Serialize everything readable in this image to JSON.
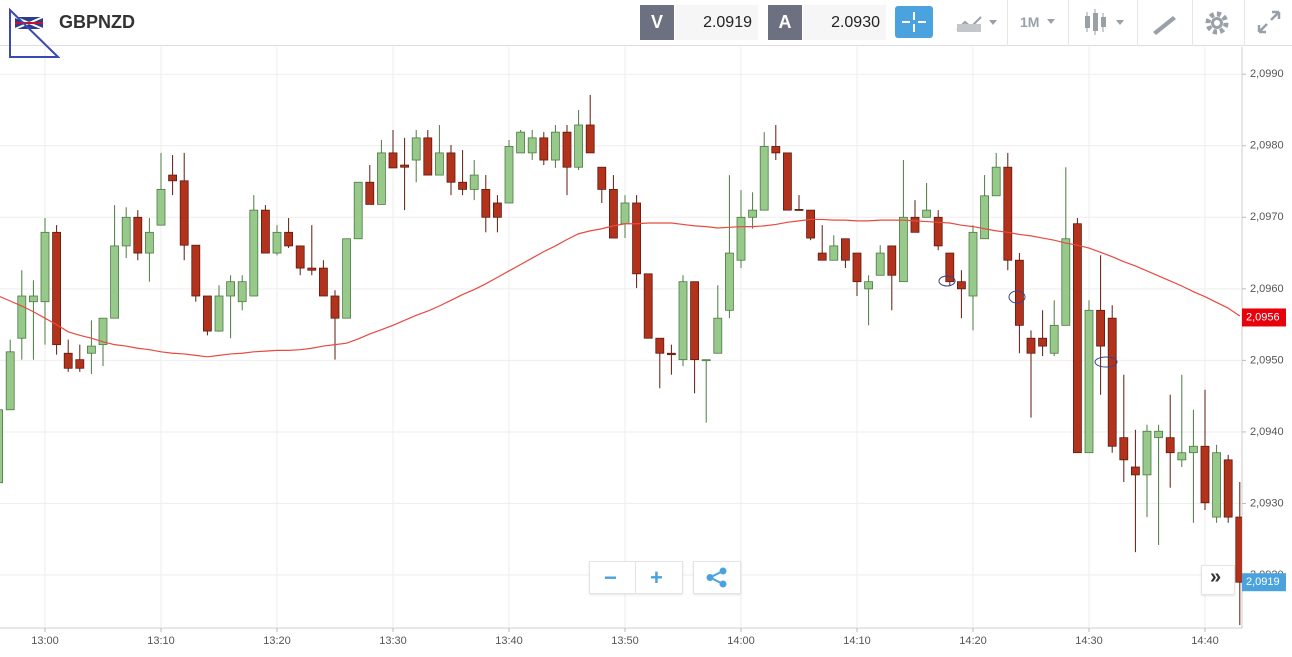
{
  "toolbar": {
    "symbol": "GBPNZD",
    "bid": {
      "label": "V",
      "price": "2.0919"
    },
    "ask": {
      "label": "A",
      "price": "2.0930"
    },
    "timeframe": "1M",
    "zoom_out": "−",
    "zoom_in": "+",
    "scroll": "»"
  },
  "chart_data": {
    "type": "candlestick",
    "x": [
      null,
      null,
      null,
      null,
      "13:00",
      null,
      null,
      null,
      null,
      null,
      null,
      null,
      null,
      null,
      "13:10",
      null,
      null,
      null,
      null,
      null,
      null,
      null,
      null,
      null,
      "13:20",
      null,
      null,
      null,
      null,
      null,
      null,
      null,
      null,
      null,
      "13:30",
      null,
      null,
      null,
      null,
      null,
      null,
      null,
      null,
      null,
      "13:40",
      null,
      null,
      null,
      null,
      null,
      null,
      null,
      null,
      null,
      "13:50",
      null,
      null,
      null,
      null,
      null,
      null,
      null,
      null,
      null,
      "14:00",
      null,
      null,
      null,
      null,
      null,
      null,
      null,
      null,
      null,
      "14:10",
      null,
      null,
      null,
      null,
      null,
      null,
      null,
      null,
      null,
      "14:20",
      null,
      null,
      null,
      null,
      null,
      null,
      null,
      null,
      null,
      "14:30",
      null,
      null,
      null,
      null,
      null,
      null,
      null,
      null,
      null,
      "14:40",
      null,
      null,
      null
    ],
    "open": [
      2.09329,
      2.09431,
      2.09531,
      2.09582,
      2.09582,
      2.09679,
      2.0951,
      2.09501,
      2.0951,
      2.09522,
      2.09559,
      2.0966,
      2.097,
      2.0965,
      2.09689,
      2.09759,
      2.09751,
      2.09661,
      2.0959,
      2.09541,
      2.0959,
      2.09582,
      2.0959,
      2.0971,
      2.0965,
      2.09679,
      2.0966,
      2.09629,
      2.09629,
      2.0959,
      2.09559,
      2.0967,
      2.09749,
      2.09718,
      2.0979,
      2.09773,
      2.0978,
      2.09811,
      2.09759,
      2.0979,
      2.09749,
      2.09739,
      2.09739,
      2.0972,
      2.0972,
      2.0979,
      2.0979,
      2.09811,
      2.0978,
      2.09819,
      2.0977,
      2.09829,
      2.0977,
      2.09739,
      2.09691,
      2.0972,
      2.09621,
      2.09531,
      2.0951,
      2.09501,
      2.0961,
      2.09501,
      2.0951,
      2.0957,
      2.0964,
      2.097,
      2.0971,
      2.09799,
      2.0979,
      2.09711,
      2.0971,
      2.0965,
      2.0964,
      2.0967,
      2.0965,
      2.096,
      2.09619,
      2.0966,
      2.0961,
      2.097,
      2.097,
      2.097,
      2.0965,
      2.0961,
      2.0959,
      2.0967,
      2.0973,
      2.0977,
      2.0964,
      2.09531,
      2.09531,
      2.0951,
      2.09549,
      2.09691,
      2.09371,
      2.0957,
      2.09559,
      2.09392,
      2.09351,
      2.0934,
      2.09392,
      2.09392,
      2.09361,
      2.09371,
      2.0938,
      2.09281,
      2.09361,
      2.09281
    ],
    "high": [
      2.09438,
      2.09529,
      2.09626,
      2.09612,
      2.09699,
      2.09689,
      2.09529,
      2.09522,
      2.09556,
      2.09559,
      2.09717,
      2.09714,
      2.0971,
      2.09699,
      2.0979,
      2.09787,
      2.0979,
      2.09661,
      2.0959,
      2.09605,
      2.09619,
      2.09619,
      2.09731,
      2.09717,
      2.09689,
      2.09699,
      2.0966,
      2.09689,
      2.0964,
      2.09598,
      2.0967,
      2.09749,
      2.09773,
      2.09808,
      2.09822,
      2.09811,
      2.09822,
      2.09822,
      2.09829,
      2.09801,
      2.09794,
      2.0978,
      2.09759,
      2.09731,
      2.09808,
      2.09822,
      2.09822,
      2.09819,
      2.09829,
      2.09829,
      2.0985,
      2.09871,
      2.0977,
      2.09759,
      2.09731,
      2.09731,
      2.09621,
      2.09531,
      2.09522,
      2.09619,
      2.0961,
      2.09501,
      2.09605,
      2.09759,
      2.09738,
      2.09735,
      2.09819,
      2.09829,
      2.0979,
      2.09731,
      2.0971,
      2.09689,
      2.09675,
      2.0967,
      2.0965,
      2.09619,
      2.09661,
      2.0966,
      2.0978,
      2.09724,
      2.09748,
      2.0971,
      2.0965,
      2.09626,
      2.09689,
      2.09759,
      2.0979,
      2.0979,
      2.0965,
      2.09542,
      2.0957,
      2.09584,
      2.0977,
      2.09699,
      2.09584,
      2.09647,
      2.09577,
      2.0948,
      2.09403,
      2.0941,
      2.0941,
      2.09452,
      2.0948,
      2.09431,
      2.09459,
      2.09382,
      2.09368,
      2.0933
    ],
    "low": [
      2.09329,
      2.09431,
      2.09501,
      2.09501,
      2.09522,
      2.09508,
      2.09484,
      2.09484,
      2.09481,
      2.09492,
      2.09559,
      2.09643,
      2.0964,
      2.0961,
      2.09689,
      2.09731,
      2.0964,
      2.09582,
      2.09535,
      2.0954,
      2.09531,
      2.0957,
      2.0959,
      2.0965,
      2.09647,
      2.09657,
      2.09619,
      2.09619,
      2.0959,
      2.09501,
      2.09559,
      2.0967,
      2.09718,
      2.09718,
      2.09769,
      2.0971,
      2.09749,
      2.09759,
      2.09759,
      2.09731,
      2.09731,
      2.09724,
      2.09679,
      2.09679,
      2.0972,
      2.0979,
      2.0978,
      2.09773,
      2.09769,
      2.09731,
      2.09766,
      2.0979,
      2.0972,
      2.09671,
      2.09671,
      2.09601,
      2.09531,
      2.09461,
      2.0948,
      2.09492,
      2.09454,
      2.09413,
      2.0951,
      2.09559,
      2.09629,
      2.09684,
      2.0971,
      2.0978,
      2.0971,
      2.0971,
      2.09668,
      2.0964,
      2.0964,
      2.09629,
      2.0959,
      2.09549,
      2.09619,
      2.0957,
      2.0961,
      2.09679,
      2.097,
      2.09654,
      2.09605,
      2.09559,
      2.09542,
      2.0967,
      2.0973,
      2.09626,
      2.0951,
      2.0942,
      2.09506,
      2.09506,
      2.09549,
      2.09371,
      2.09371,
      2.09452,
      2.09371,
      2.0933,
      2.09232,
      2.09281,
      2.09242,
      2.09322,
      2.09351,
      2.09273,
      2.09291,
      2.09273,
      2.09273,
      2.0913
    ],
    "close": [
      2.09431,
      2.09512,
      2.0959,
      2.0959,
      2.09679,
      2.09522,
      2.09489,
      2.09489,
      2.0952,
      2.09559,
      2.0966,
      2.097,
      2.0965,
      2.09679,
      2.09739,
      2.09751,
      2.09661,
      2.0959,
      2.09541,
      2.0959,
      2.0961,
      2.0961,
      2.0971,
      2.0965,
      2.09679,
      2.0966,
      2.09629,
      2.09626,
      2.0959,
      2.09559,
      2.0967,
      2.09749,
      2.09718,
      2.0979,
      2.09769,
      2.0977,
      2.09811,
      2.09759,
      2.0979,
      2.09749,
      2.09739,
      2.09759,
      2.097,
      2.097,
      2.09799,
      2.09819,
      2.09811,
      2.0978,
      2.09819,
      2.0977,
      2.09829,
      2.0979,
      2.09739,
      2.09671,
      2.0972,
      2.09621,
      2.09531,
      2.0951,
      2.09508,
      2.0961,
      2.09501,
      2.09501,
      2.09559,
      2.0965,
      2.097,
      2.0971,
      2.09799,
      2.0979,
      2.0971,
      2.0971,
      2.09671,
      2.0964,
      2.0966,
      2.0964,
      2.0961,
      2.0961,
      2.0965,
      2.09619,
      2.097,
      2.09679,
      2.0971,
      2.0966,
      2.0961,
      2.096,
      2.09679,
      2.0973,
      2.0977,
      2.0964,
      2.09549,
      2.0951,
      2.0952,
      2.09549,
      2.0967,
      2.09371,
      2.0957,
      2.0952,
      2.0938,
      2.09361,
      2.0934,
      2.09401,
      2.09401,
      2.09371,
      2.09371,
      2.0938,
      2.09301,
      2.09371,
      2.09281,
      2.0919
    ],
    "up_color": "#97c98a",
    "down_color": "#b3321c",
    "moving_average": {
      "color": "#e84a3f",
      "values": [
        2.0959,
        2.09583,
        2.09576,
        2.09568,
        2.09559,
        2.0955,
        2.0954,
        2.09535,
        2.09531,
        2.09526,
        2.09522,
        2.0952,
        2.09517,
        2.09515,
        2.09512,
        2.0951,
        2.09509,
        2.09507,
        2.09505,
        2.09507,
        2.09509,
        2.0951,
        2.09512,
        2.09513,
        2.09514,
        2.09514,
        2.09515,
        2.09517,
        2.0952,
        2.09522,
        2.09524,
        2.0953,
        2.09537,
        2.09543,
        2.09549,
        2.09556,
        2.09563,
        2.09569,
        2.09576,
        2.09584,
        2.09592,
        2.09599,
        2.09607,
        2.09616,
        2.09625,
        2.09634,
        2.09643,
        2.09652,
        2.0966,
        2.09669,
        2.09677,
        2.09681,
        2.09684,
        2.09688,
        2.09691,
        2.09691,
        2.09692,
        2.09692,
        2.09692,
        2.0969,
        2.09688,
        2.09687,
        2.09685,
        2.09686,
        2.09687,
        2.09687,
        2.09688,
        2.0969,
        2.09693,
        2.09695,
        2.09697,
        2.09697,
        2.09696,
        2.09696,
        2.09695,
        2.09695,
        2.09696,
        2.09696,
        2.09696,
        2.09695,
        2.09694,
        2.09693,
        2.09692,
        2.09689,
        2.09687,
        2.09684,
        2.09681,
        2.09679,
        2.09676,
        2.09674,
        2.09671,
        2.09668,
        2.09664,
        2.09661,
        2.09657,
        2.09651,
        2.09645,
        2.09638,
        2.09632,
        2.09625,
        2.09618,
        2.09611,
        2.09604,
        2.09596,
        2.09589,
        2.09581,
        2.09573,
        2.09562
      ]
    },
    "ylim": [
      2.09126,
      2.09938
    ],
    "yticks": [
      {
        "value": 2.092,
        "label": "2,0920"
      },
      {
        "value": 2.093,
        "label": "2,0930"
      },
      {
        "value": 2.094,
        "label": "2,0940"
      },
      {
        "value": 2.095,
        "label": "2,0950"
      },
      {
        "value": 2.096,
        "label": "2,0960"
      },
      {
        "value": 2.097,
        "label": "2,0970"
      },
      {
        "value": 2.098,
        "label": "2,0980"
      },
      {
        "value": 2.099,
        "label": "2,0990"
      }
    ],
    "price_labels": [
      {
        "value": 2.0956,
        "label": "2,0956",
        "color": "#e8000b"
      },
      {
        "value": 2.0919,
        "label": "2,0919",
        "color": "#4aa3df"
      }
    ],
    "grid": true
  }
}
